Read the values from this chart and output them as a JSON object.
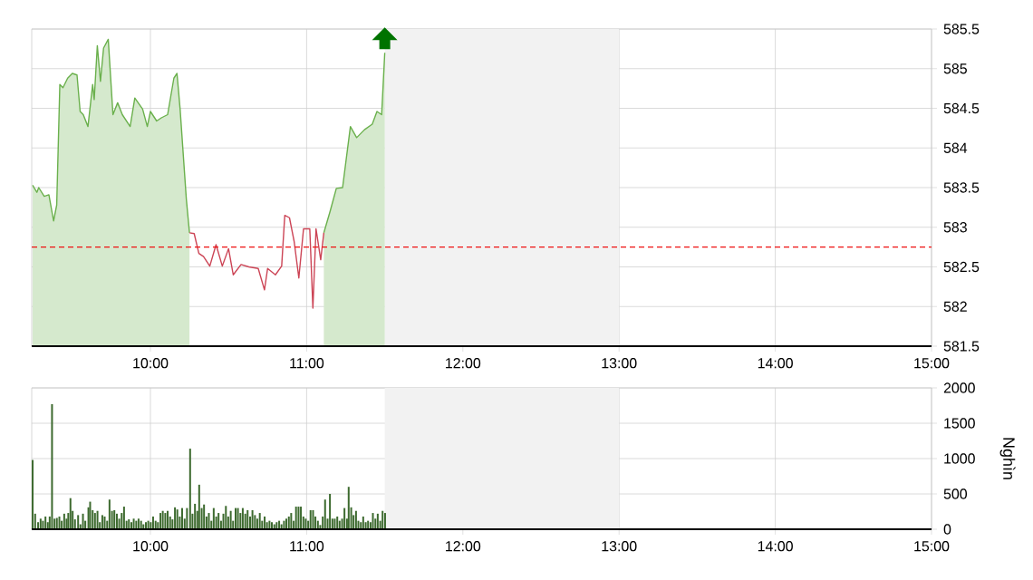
{
  "chart_data": [
    {
      "type": "area",
      "x": [
        9.246,
        9.273,
        9.285,
        9.32,
        9.35,
        9.38,
        9.4,
        9.42,
        9.44,
        9.47,
        9.5,
        9.53,
        9.55,
        9.57,
        9.6,
        9.63,
        9.64,
        9.66,
        9.68,
        9.7,
        9.73,
        9.76,
        9.79,
        9.82,
        9.87,
        9.9,
        9.95,
        9.98,
        10.0,
        10.04,
        10.07,
        10.11,
        10.15,
        10.17,
        10.19,
        10.23,
        10.25,
        10.28,
        10.31,
        10.34,
        10.38,
        10.42,
        10.46,
        10.5,
        10.53,
        10.58,
        10.63,
        10.69,
        10.73,
        10.75,
        10.8,
        10.84,
        10.86,
        10.89,
        10.92,
        10.95,
        10.98,
        11.02,
        11.04,
        11.06,
        11.09,
        11.11,
        11.15,
        11.19,
        11.23,
        11.28,
        11.32,
        11.37,
        11.42,
        11.45,
        11.48,
        11.5
      ],
      "series": [
        {
          "color": "#6ab04c",
          "values": [
            583.53,
            583.44,
            583.5,
            583.39,
            583.41,
            583.08,
            583.28,
            584.8,
            584.76,
            584.88,
            584.94,
            584.92,
            584.46,
            584.42,
            584.27,
            584.8,
            584.61,
            585.29,
            584.84,
            585.26,
            585.37,
            584.42,
            584.57,
            584.42,
            584.27,
            584.63,
            584.49,
            584.27,
            584.46,
            584.34,
            584.38,
            584.42,
            584.88,
            584.94,
            584.49,
            583.35,
            582.93,
            null,
            null,
            null,
            null,
            null,
            null,
            null,
            null,
            null,
            null,
            null,
            null,
            null,
            null,
            null,
            null,
            null,
            null,
            null,
            null,
            null,
            null,
            null,
            null,
            582.93,
            583.2,
            583.49,
            583.5,
            584.27,
            584.13,
            584.23,
            584.3,
            584.46,
            584.42,
            585.2
          ]
        },
        {
          "type": "line",
          "color": "#cc4455",
          "values": [
            null,
            null,
            null,
            null,
            null,
            null,
            null,
            null,
            null,
            null,
            null,
            null,
            null,
            null,
            null,
            null,
            null,
            null,
            null,
            null,
            null,
            null,
            null,
            null,
            null,
            null,
            null,
            null,
            null,
            null,
            null,
            null,
            null,
            null,
            null,
            null,
            582.93,
            582.92,
            582.67,
            582.63,
            582.51,
            582.78,
            582.51,
            582.73,
            582.4,
            582.53,
            582.5,
            582.48,
            582.21,
            582.48,
            582.4,
            582.51,
            583.15,
            583.12,
            582.82,
            582.36,
            582.98,
            582.98,
            581.98,
            582.98,
            582.59,
            582.93,
            null,
            null,
            null,
            null,
            null,
            null,
            null,
            null,
            null,
            null
          ]
        }
      ],
      "xlim": [
        9.24,
        15
      ],
      "xticks": [
        {
          "value": 10,
          "label": "10:00"
        },
        {
          "value": 11,
          "label": "11:00"
        },
        {
          "value": 12,
          "label": "12:00"
        },
        {
          "value": 13,
          "label": "13:00"
        },
        {
          "value": 14,
          "label": "14:00"
        },
        {
          "value": 15,
          "label": "15:00"
        }
      ],
      "ylim": [
        581.5,
        585.5
      ],
      "yticks": [
        581.5,
        582,
        582.5,
        583,
        583.5,
        584,
        584.5,
        585,
        585.5
      ],
      "grid": true,
      "ref_lines": [
        {
          "axis": "y",
          "value": 582.75,
          "color": "#ee1111",
          "line_style": "dashed"
        }
      ],
      "bands": [
        {
          "axis": "x",
          "from": 11.5,
          "to": 13,
          "color": "#f2f2f2"
        }
      ]
    },
    {
      "type": "bar",
      "x": [
        9.246,
        9.262,
        9.281,
        9.297,
        9.312,
        9.328,
        9.343,
        9.355,
        9.37,
        9.386,
        9.401,
        9.417,
        9.432,
        9.448,
        9.463,
        9.474,
        9.488,
        9.502,
        9.517,
        9.537,
        9.552,
        9.568,
        9.583,
        9.603,
        9.614,
        9.63,
        9.645,
        9.661,
        9.676,
        9.692,
        9.707,
        9.723,
        9.738,
        9.754,
        9.769,
        9.785,
        9.8,
        9.816,
        9.831,
        9.847,
        9.862,
        9.878,
        9.893,
        9.909,
        9.924,
        9.94,
        9.955,
        9.971,
        9.986,
        10.002,
        10.017,
        10.033,
        10.048,
        10.064,
        10.079,
        10.095,
        10.11,
        10.126,
        10.141,
        10.157,
        10.172,
        10.188,
        10.203,
        10.219,
        10.234,
        10.254,
        10.269,
        10.285,
        10.3,
        10.312,
        10.328,
        10.343,
        10.359,
        10.374,
        10.39,
        10.405,
        10.421,
        10.436,
        10.452,
        10.467,
        10.483,
        10.498,
        10.514,
        10.529,
        10.545,
        10.56,
        10.576,
        10.591,
        10.607,
        10.622,
        10.638,
        10.653,
        10.669,
        10.684,
        10.7,
        10.715,
        10.731,
        10.746,
        10.762,
        10.777,
        10.793,
        10.808,
        10.824,
        10.839,
        10.855,
        10.87,
        10.886,
        10.901,
        10.917,
        10.932,
        10.948,
        10.963,
        10.979,
        10.994,
        11.01,
        11.025,
        11.041,
        11.056,
        11.072,
        11.087,
        11.103,
        11.118,
        11.134,
        11.149,
        11.165,
        11.18,
        11.196,
        11.211,
        11.227,
        11.242,
        11.258,
        11.269,
        11.285,
        11.3,
        11.316,
        11.331,
        11.347,
        11.362,
        11.378,
        11.393,
        11.409,
        11.424,
        11.44,
        11.455,
        11.471,
        11.486,
        11.502
      ],
      "values": [
        980,
        220,
        100,
        150,
        120,
        180,
        100,
        180,
        1770,
        150,
        160,
        180,
        120,
        220,
        150,
        230,
        440,
        260,
        140,
        200,
        70,
        220,
        120,
        310,
        390,
        270,
        230,
        260,
        100,
        200,
        180,
        120,
        420,
        260,
        270,
        220,
        150,
        230,
        320,
        120,
        140,
        100,
        150,
        120,
        150,
        120,
        70,
        100,
        120,
        100,
        180,
        120,
        100,
        230,
        260,
        230,
        260,
        180,
        140,
        310,
        280,
        180,
        300,
        150,
        300,
        1140,
        220,
        360,
        260,
        630,
        300,
        350,
        180,
        230,
        120,
        300,
        180,
        230,
        120,
        220,
        330,
        180,
        260,
        120,
        300,
        300,
        230,
        300,
        220,
        270,
        180,
        270,
        200,
        150,
        230,
        120,
        180,
        100,
        120,
        100,
        70,
        100,
        120,
        70,
        120,
        150,
        180,
        230,
        120,
        320,
        320,
        320,
        180,
        150,
        120,
        270,
        270,
        180,
        120,
        60,
        180,
        420,
        150,
        500,
        150,
        150,
        180,
        120,
        150,
        300,
        150,
        600,
        310,
        200,
        260,
        120,
        100,
        180,
        100,
        120,
        100,
        230,
        150,
        220,
        120,
        260,
        230
      ],
      "color": "#3d6a2f",
      "xlim": [
        9.24,
        15
      ],
      "xticks": [
        {
          "value": 10,
          "label": "10:00"
        },
        {
          "value": 11,
          "label": "11:00"
        },
        {
          "value": 12,
          "label": "12:00"
        },
        {
          "value": 13,
          "label": "13:00"
        },
        {
          "value": 14,
          "label": "14:00"
        },
        {
          "value": 15,
          "label": "15:00"
        }
      ],
      "ylim": [
        0,
        2000
      ],
      "yticks": [
        0,
        500,
        1000,
        1500,
        2000
      ],
      "ylabel": "Nghìn",
      "grid": true,
      "bands": [
        {
          "axis": "x",
          "from": 11.5,
          "to": 13,
          "color": "#f2f2f2"
        }
      ]
    }
  ]
}
